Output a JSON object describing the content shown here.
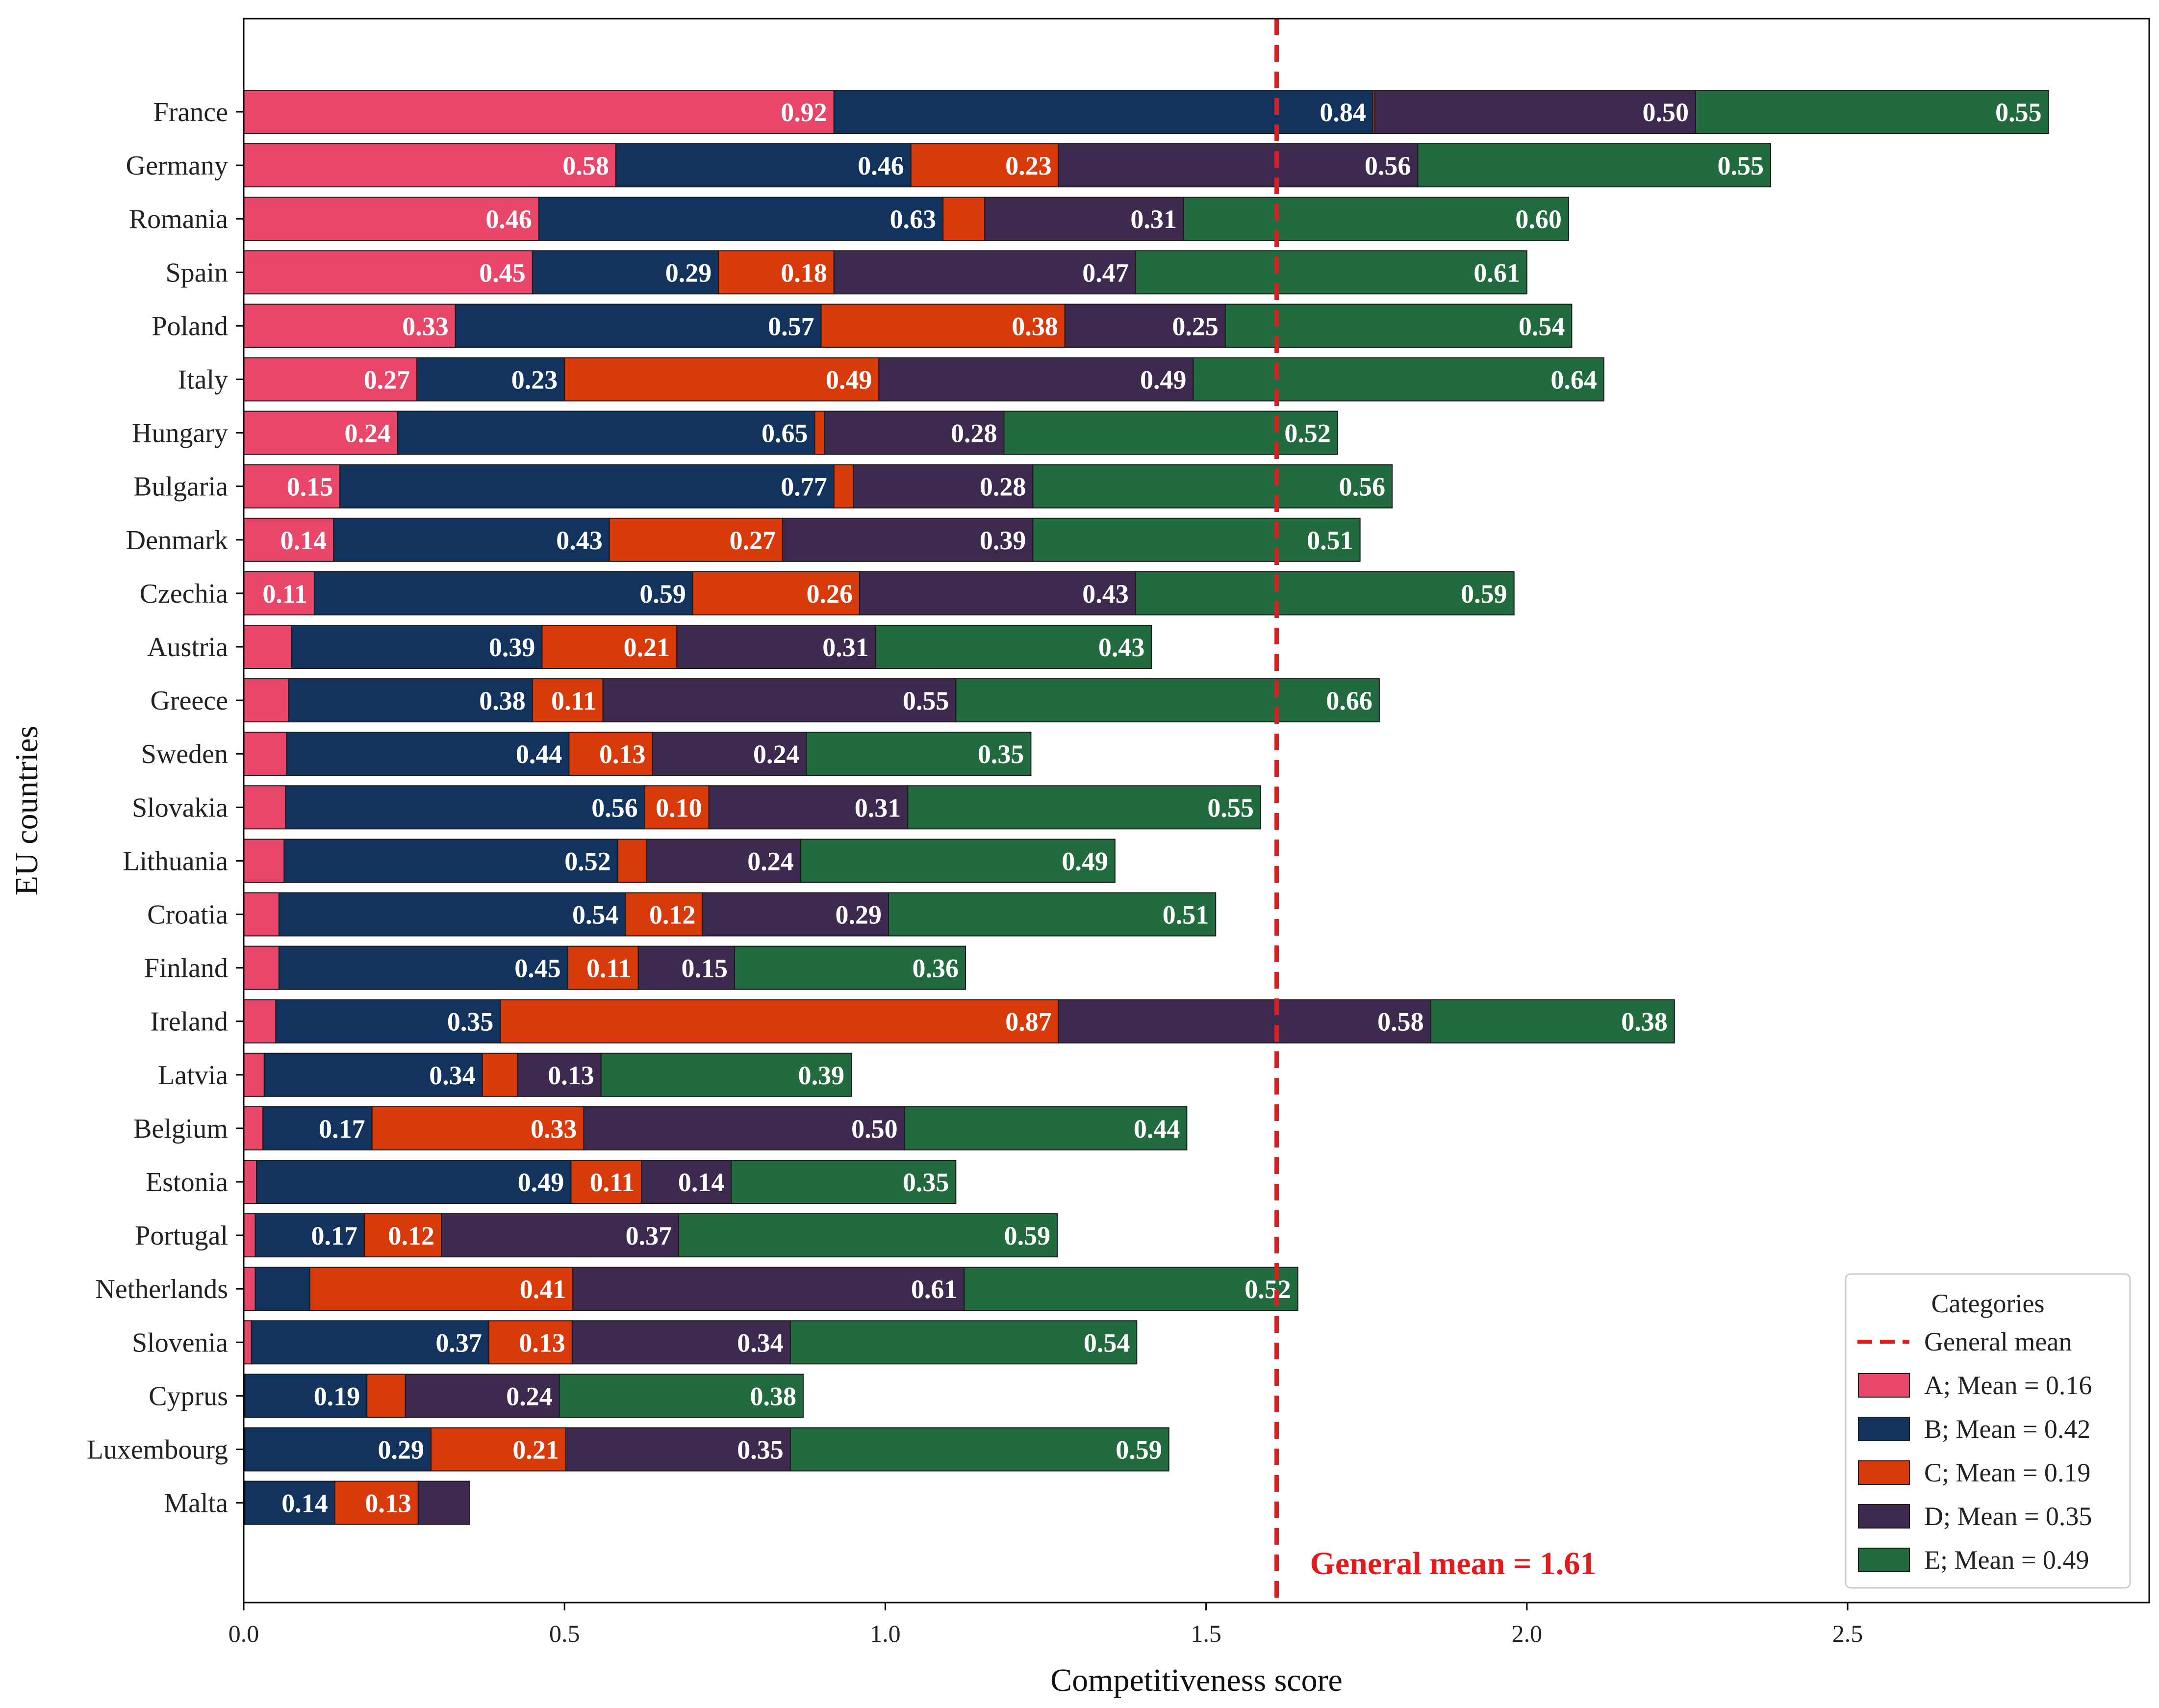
{
  "chart_data": {
    "type": "bar",
    "orientation": "horizontal",
    "stacked": true,
    "xlabel": "Competitiveness score",
    "ylabel": "EU countries",
    "xlim": [
      0,
      2.97
    ],
    "xticks": [
      0.0,
      0.5,
      1.0,
      1.5,
      2.0,
      2.5
    ],
    "xtick_labels": [
      "0.0",
      "0.5",
      "1.0",
      "1.5",
      "2.0",
      "2.5"
    ],
    "label_threshold": 0.1,
    "categories": [
      "France",
      "Germany",
      "Romania",
      "Spain",
      "Poland",
      "Italy",
      "Hungary",
      "Bulgaria",
      "Denmark",
      "Czechia",
      "Austria",
      "Greece",
      "Sweden",
      "Slovakia",
      "Lithuania",
      "Croatia",
      "Finland",
      "Ireland",
      "Latvia",
      "Belgium",
      "Estonia",
      "Portugal",
      "Netherlands",
      "Slovenia",
      "Cyprus",
      "Luxembourg",
      "Malta"
    ],
    "series": [
      {
        "name": "A",
        "color": "#e8476a",
        "values": [
          0.92,
          0.58,
          0.46,
          0.45,
          0.33,
          0.27,
          0.24,
          0.15,
          0.14,
          0.11,
          0.075,
          0.07,
          0.067,
          0.065,
          0.063,
          0.055,
          0.055,
          0.05,
          0.032,
          0.03,
          0.02,
          0.018,
          0.018,
          0.012,
          0.002,
          0.002,
          0.002
        ]
      },
      {
        "name": "B",
        "color": "#12335e",
        "values": [
          0.84,
          0.46,
          0.63,
          0.29,
          0.57,
          0.23,
          0.65,
          0.77,
          0.43,
          0.59,
          0.39,
          0.38,
          0.44,
          0.56,
          0.52,
          0.54,
          0.45,
          0.35,
          0.34,
          0.17,
          0.49,
          0.17,
          0.085,
          0.37,
          0.19,
          0.29,
          0.14
        ]
      },
      {
        "name": "C",
        "color": "#d93a0b",
        "values": [
          0.003,
          0.23,
          0.065,
          0.18,
          0.38,
          0.49,
          0.015,
          0.03,
          0.27,
          0.26,
          0.21,
          0.11,
          0.13,
          0.1,
          0.045,
          0.12,
          0.11,
          0.87,
          0.055,
          0.33,
          0.11,
          0.12,
          0.41,
          0.13,
          0.06,
          0.21,
          0.13
        ]
      },
      {
        "name": "D",
        "color": "#3d2a4e",
        "values": [
          0.5,
          0.56,
          0.31,
          0.47,
          0.25,
          0.49,
          0.28,
          0.28,
          0.39,
          0.43,
          0.31,
          0.55,
          0.24,
          0.31,
          0.24,
          0.29,
          0.15,
          0.58,
          0.13,
          0.5,
          0.14,
          0.37,
          0.61,
          0.34,
          0.24,
          0.35,
          0.08
        ]
      },
      {
        "name": "E",
        "color": "#226b3f",
        "values": [
          0.55,
          0.55,
          0.6,
          0.61,
          0.54,
          0.64,
          0.52,
          0.56,
          0.51,
          0.59,
          0.43,
          0.66,
          0.35,
          0.55,
          0.49,
          0.51,
          0.36,
          0.38,
          0.39,
          0.44,
          0.35,
          0.59,
          0.52,
          0.54,
          0.38,
          0.59,
          0
        ]
      }
    ],
    "general_mean": 1.61,
    "general_mean_label": "General mean = 1.61",
    "general_mean_color": "#e41a1c",
    "legend": {
      "title": "Categories",
      "position": "lower-right",
      "entries": [
        "General mean",
        "A; Mean = 0.16",
        "B; Mean = 0.42",
        "C; Mean = 0.19",
        "D; Mean = 0.35",
        "E; Mean = 0.49"
      ]
    }
  }
}
